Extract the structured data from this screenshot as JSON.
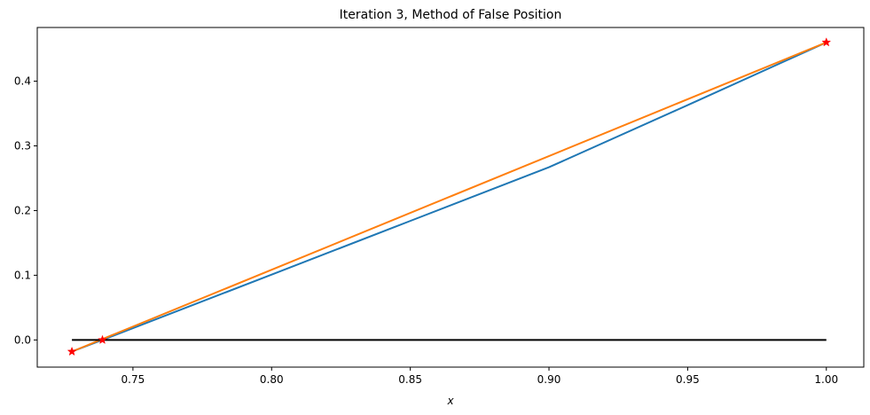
{
  "chart_data": {
    "type": "line",
    "title": "Iteration 3, Method of False Position",
    "xlabel": "x",
    "ylabel": "",
    "xlim": [
      0.7155,
      1.0135
    ],
    "ylim": [
      -0.042,
      0.483
    ],
    "xticks": [
      0.75,
      0.8,
      0.85,
      0.9,
      0.95,
      1.0
    ],
    "xtick_labels": [
      "0.75",
      "0.80",
      "0.85",
      "0.90",
      "0.95",
      "1.00"
    ],
    "yticks": [
      0.0,
      0.1,
      0.2,
      0.3,
      0.4
    ],
    "ytick_labels": [
      "0.0",
      "0.1",
      "0.2",
      "0.3",
      "0.4"
    ],
    "grid": false,
    "legend": "none",
    "series": [
      {
        "kind": "line",
        "color": "#1f77b4",
        "points": [
          [
            0.728,
            -0.018
          ],
          [
            0.739,
            0.0
          ],
          [
            0.8,
            0.101
          ],
          [
            0.85,
            0.184
          ],
          [
            0.9,
            0.267
          ],
          [
            0.95,
            0.363
          ],
          [
            1.0,
            0.46
          ]
        ]
      },
      {
        "kind": "line",
        "color": "#ff7f0e",
        "points": [
          [
            0.728,
            -0.018
          ],
          [
            1.0,
            0.46
          ]
        ]
      },
      {
        "kind": "line",
        "color": "#000000",
        "points": [
          [
            0.728,
            0.0
          ],
          [
            1.0,
            0.0
          ]
        ]
      },
      {
        "kind": "markers",
        "marker": "star",
        "color": "#ff0000",
        "points": [
          [
            0.728,
            -0.018
          ],
          [
            0.739,
            0.0
          ],
          [
            1.0,
            0.46
          ]
        ]
      }
    ]
  }
}
